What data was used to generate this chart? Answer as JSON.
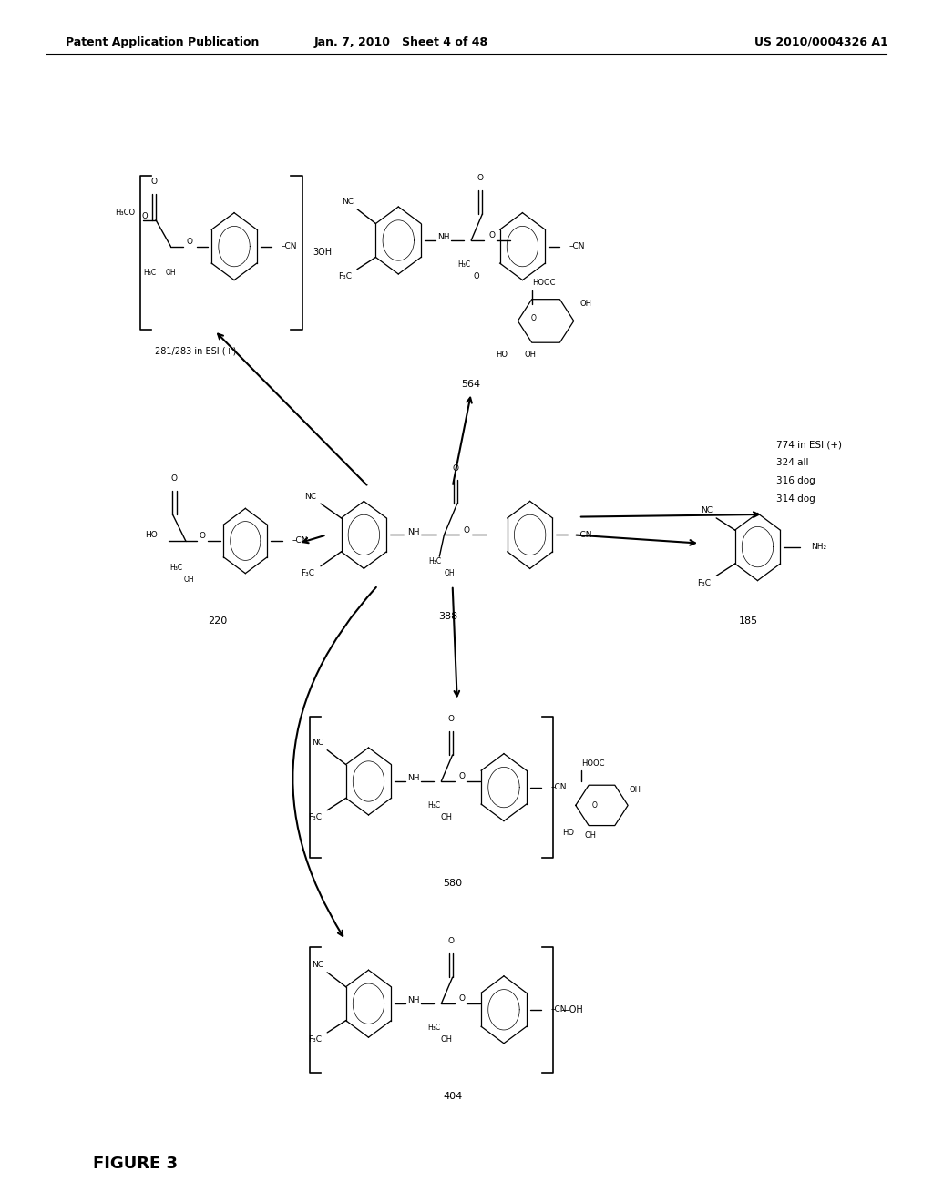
{
  "header_left": "Patent Application Publication",
  "header_mid": "Jan. 7, 2010   Sheet 4 of 48",
  "header_right": "US 2010/0004326 A1",
  "figure_label": "FIGURE 3",
  "bg_color": "#ffffff",
  "text_color": "#000000",
  "compounds": {
    "top_left_label": "281/283 in ESI (+)",
    "top_center_label": "564",
    "right_info": "774 in ESI (+)\n324 all\n316 dog\n314 dog",
    "mid_left_label": "220",
    "center_label": "388",
    "right_label": "185",
    "lower_center_label": "580",
    "bottom_center_label": "404"
  }
}
